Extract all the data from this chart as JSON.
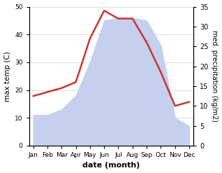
{
  "months": [
    "Jan",
    "Feb",
    "Mar",
    "Apr",
    "May",
    "Jun",
    "Jul",
    "Aug",
    "Sep",
    "Oct",
    "Nov",
    "Dec"
  ],
  "temp": [
    11,
    11,
    13,
    18,
    30,
    45,
    46,
    46,
    45,
    36,
    10,
    7
  ],
  "precip": [
    12.5,
    13.5,
    14.5,
    16,
    27,
    34,
    32,
    32,
    26,
    18.5,
    10,
    11
  ],
  "temp_ylim": [
    0,
    50
  ],
  "precip_ylim": [
    0,
    35
  ],
  "temp_color_fill": "#c5d0ee",
  "temp_line_color": "#cc3333",
  "xlabel": "date (month)",
  "ylabel_left": "max temp (C)",
  "ylabel_right": "med. precipitation (kg/m2)",
  "bg_color": "#ffffff",
  "grid_color": "#cccccc"
}
